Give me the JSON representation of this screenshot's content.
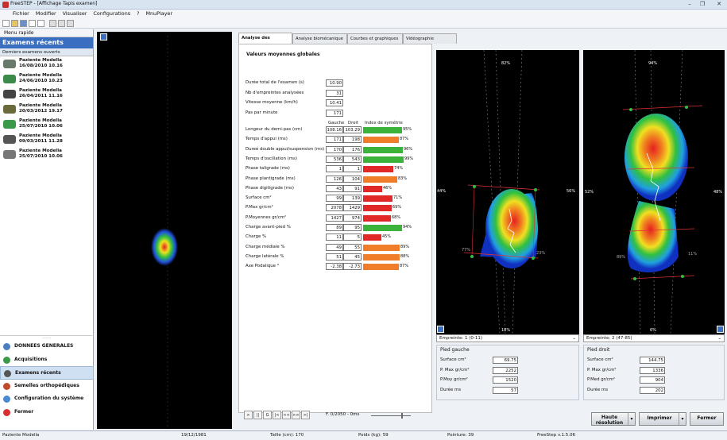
{
  "window": {
    "title": "FreeSTEP - [Affichage Tapis examen]"
  },
  "menu": [
    "Fichier",
    "Modifier",
    "Visualiser",
    "Configurations",
    "?",
    "MnuPlayer"
  ],
  "left": {
    "header": "Menu rapide",
    "title": "Examens récents",
    "subtitle": "Derniers examens ouverts",
    "exams": [
      {
        "name": "Paziente Modella",
        "date": "16/08/2010 10.16"
      },
      {
        "name": "Paziente Modella",
        "date": "24/06/2010 10.23"
      },
      {
        "name": "Paziente Modella",
        "date": "26/04/2011 11.16"
      },
      {
        "name": "Paziente Modella",
        "date": "20/03/2012 19.17"
      },
      {
        "name": "Paziente Modella",
        "date": "25/07/2010 10.06"
      },
      {
        "name": "Paziente Modella",
        "date": "09/03/2011 11.28"
      },
      {
        "name": "Paziente Modella",
        "date": "25/07/2010 10.06"
      }
    ],
    "nav": [
      "DONNEES GENERALES",
      "Acquisitions",
      "Examens récents",
      "Semelles orthopédiques",
      "Configuration du système",
      "Fermer"
    ]
  },
  "tabs": [
    "Analyse des emprei...",
    "Analyse biomécanique",
    "Courbes et graphiques",
    "Vidéographie"
  ],
  "analysis": {
    "title": "Valeurs moyennes globales",
    "general": [
      {
        "label": "Durée total de l'examen (s)",
        "value": "10.90"
      },
      {
        "label": "Nb d'empreintes analysées",
        "value": "31"
      },
      {
        "label": "Vitesse moyenne (km/h)",
        "value": "10.41"
      },
      {
        "label": "Pas par minute",
        "value": "171"
      }
    ],
    "col_left": "Gauche",
    "col_right": "Droit",
    "col_sym": "Index de symétrie",
    "metrics": [
      {
        "label": "Longeur du demi-pas (cm)",
        "g": "108.16",
        "d": "103.29",
        "pct": "95%",
        "pv": 95,
        "color": "#3bb33b"
      },
      {
        "label": "Temps d'appui (ms)",
        "g": "171",
        "d": "198",
        "pct": "87%",
        "pv": 87,
        "color": "#f07d2a"
      },
      {
        "label": "Dureé double appui/suspension (ms)",
        "g": "170",
        "d": "176",
        "pct": "96%",
        "pv": 96,
        "color": "#3bb33b"
      },
      {
        "label": "Temps d'oscillation (ms)",
        "g": "536",
        "d": "543",
        "pct": "99%",
        "pv": 99,
        "color": "#3bb33b"
      },
      {
        "label": "Phase taligrade (ms)",
        "g": "1",
        "d": "1",
        "pct": "74%",
        "pv": 74,
        "color": "#e02828"
      },
      {
        "label": "Phase plantigrade (ms)",
        "g": "126",
        "d": "104",
        "pct": "83%",
        "pv": 83,
        "color": "#f07d2a"
      },
      {
        "label": "Phase digitigrade (ms)",
        "g": "43",
        "d": "91",
        "pct": "46%",
        "pv": 46,
        "color": "#e02828"
      },
      {
        "label": "Surface cm²",
        "g": "99",
        "d": "139",
        "pct": "71%",
        "pv": 71,
        "color": "#e02828"
      },
      {
        "label": "P.Max gr/cm²",
        "g": "2078",
        "d": "1429",
        "pct": "69%",
        "pv": 69,
        "color": "#e02828"
      },
      {
        "label": "P.Moyennes gr/cm²",
        "g": "1427",
        "d": "974",
        "pct": "68%",
        "pv": 68,
        "color": "#e02828"
      },
      {
        "label": "Charge avant-pied %",
        "g": "89",
        "d": "95",
        "pct": "94%",
        "pv": 94,
        "color": "#3bb33b"
      },
      {
        "label": "Charge %",
        "g": "11",
        "d": "5",
        "pct": "45%",
        "pv": 45,
        "color": "#e02828"
      },
      {
        "label": "Charge médiale %",
        "g": "49",
        "d": "55",
        "pct": "89%",
        "pv": 89,
        "color": "#f07d2a"
      },
      {
        "label": "Charge latérale %",
        "g": "51",
        "d": "45",
        "pct": "88%",
        "pv": 88,
        "color": "#f07d2a"
      },
      {
        "label": "Axe Podalique °",
        "g": "-2.38",
        "d": "-2.73",
        "pct": "87%",
        "pv": 87,
        "color": "#f07d2a"
      }
    ]
  },
  "left_foot": {
    "footer": "Empreinte: 1 (0-11)",
    "panel_title": "Pied gauche",
    "p_top": "82%",
    "p_left": "44%",
    "p_right": "56%",
    "p_ll": "77%",
    "p_lr": "23%",
    "p_bottom": "18%",
    "rows": [
      {
        "l": "Surface cm²",
        "v": "69.75"
      },
      {
        "l": "P. Max  gr/cm²",
        "v": "2252"
      },
      {
        "l": "P.Moy gr/cm²",
        "v": "1520"
      },
      {
        "l": "Durée ms",
        "v": "57"
      }
    ]
  },
  "right_foot": {
    "footer": "Empreinte: 2 (47-85)",
    "panel_title": "Pied droit",
    "p_top": "94%",
    "p_left": "52%",
    "p_right": "48%",
    "p_ll": "89%",
    "p_lr": "11%",
    "p_bottom": "6%",
    "rows": [
      {
        "l": "Surface cm²",
        "v": "144.75"
      },
      {
        "l": "P. Max  gr/cm²",
        "v": "1336"
      },
      {
        "l": "P.Med gr/cm²",
        "v": "904"
      },
      {
        "l": "Durée ms",
        "v": "202"
      }
    ]
  },
  "player": {
    "buttons": [
      ">",
      "||",
      "G",
      "|<",
      "<<",
      ">>",
      ">|"
    ],
    "frame": "F. 0/2050 - 0ms"
  },
  "buttons": {
    "hires": "Haute résolution",
    "print": "Imprimer",
    "close": "Fermer"
  },
  "status": {
    "patient": "Paziente Modella",
    "dob": "19/12/1981",
    "height": "Taille (cm): 170",
    "weight": "Poids (kg): 59",
    "size": "Pointure: 39",
    "version": "FreeStep v.1.5.06"
  }
}
